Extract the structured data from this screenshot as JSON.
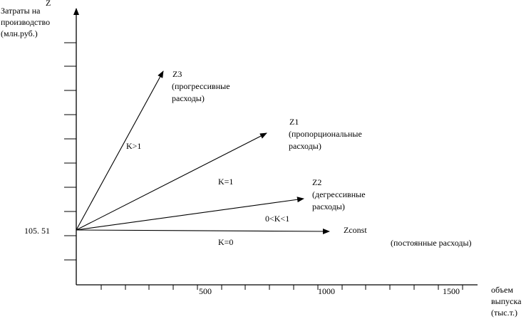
{
  "axes": {
    "y_letter": "Z",
    "y_title_line1": "Затраты на",
    "y_title_line2": "производство",
    "y_title_line3": "(млн.руб.)",
    "y_intercept_label": "105. 51",
    "x_title_line1": "объем",
    "x_title_line2": "выпуска",
    "x_title_line3": "(тыс.т.)",
    "x_ticks": [
      "500",
      "1000",
      "1500"
    ]
  },
  "lines": {
    "z3": {
      "name": "Z3",
      "desc_line1": "(прогрессивные",
      "desc_line2": "расходы)",
      "k": "K>1"
    },
    "z1": {
      "name": "Z1",
      "desc_line1": "(пропорциональные",
      "desc_line2": "расходы)",
      "k": "K=1"
    },
    "z2": {
      "name": "Z2",
      "desc_line1": "(дегрессивные",
      "desc_line2": "расходы)",
      "k": "0<K<1"
    },
    "zconst": {
      "name": "Zconst",
      "desc": "(постоянные расходы)",
      "k": "K=0"
    }
  }
}
